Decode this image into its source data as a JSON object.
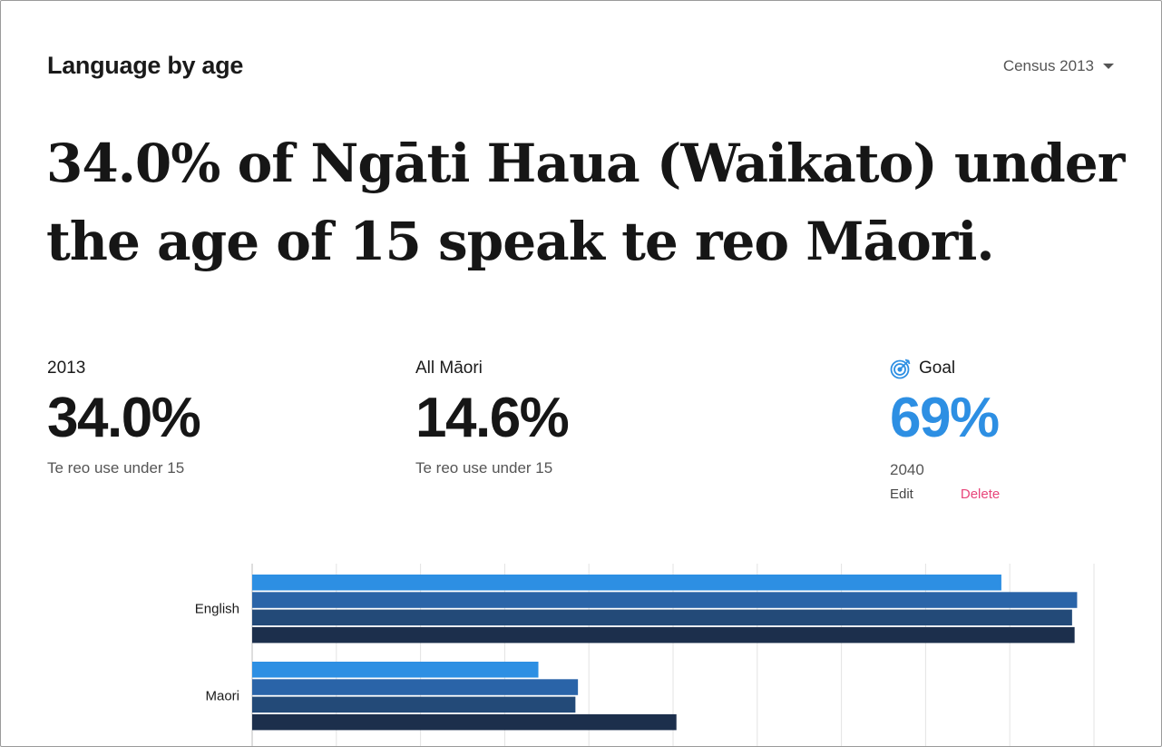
{
  "section": {
    "title": "Language by age",
    "dropdown_value": "Census 2013"
  },
  "headline": "34.0% of Ngāti Haua (Waikato) under the age of 15 speak te reo Māori.",
  "stats": [
    {
      "label": "2013",
      "value": "34.0%",
      "sub": "Te reo use under 15"
    },
    {
      "label": "All Māori",
      "value": "14.6%",
      "sub": "Te reo use under 15"
    }
  ],
  "goal": {
    "icon": "target-icon",
    "label": "Goal",
    "value": "69%",
    "year": "2040",
    "edit_label": "Edit",
    "delete_label": "Delete"
  },
  "colors": {
    "accent": "#2d8fe3",
    "delete": "#e8457a",
    "series": [
      "#2d8fe3",
      "#2a64a8",
      "#234a78",
      "#1c2f4c"
    ]
  },
  "chart_data": {
    "type": "bar",
    "orientation": "horizontal",
    "categories": [
      "English",
      "Maori"
    ],
    "series": [
      {
        "values": [
          89,
          34
        ]
      },
      {
        "values": [
          98,
          38.7
        ]
      },
      {
        "values": [
          97.4,
          38.4
        ]
      },
      {
        "values": [
          97.7,
          50.4
        ]
      }
    ],
    "xlim": [
      0,
      100
    ],
    "grid": true,
    "legend": "none"
  }
}
